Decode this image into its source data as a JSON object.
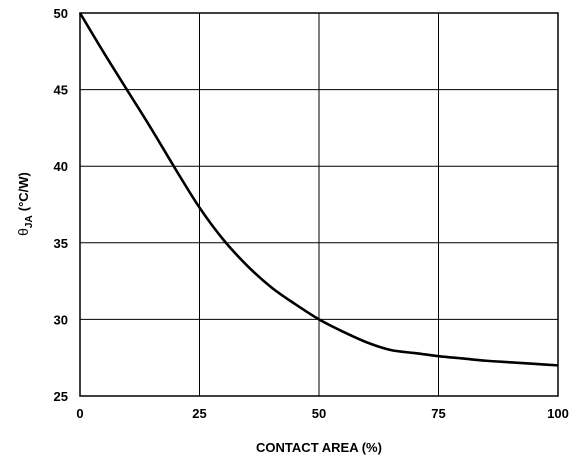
{
  "chart_data": {
    "type": "line",
    "title": "",
    "xlabel": "CONTACT AREA (%)",
    "ylabel": {
      "symbol": "θ",
      "subscript": "JA",
      "unit": "(°C/W)"
    },
    "xlim": [
      0,
      100
    ],
    "ylim": [
      25,
      50
    ],
    "x_ticks": [
      0,
      25,
      50,
      75,
      100
    ],
    "y_ticks": [
      25,
      30,
      35,
      40,
      45,
      50
    ],
    "grid": true,
    "legend": "none",
    "series": [
      {
        "x": [
          0,
          5,
          10,
          15,
          20,
          25,
          30,
          35,
          40,
          45,
          50,
          55,
          60,
          65,
          70,
          75,
          80,
          85,
          90,
          95,
          100
        ],
        "y": [
          50,
          47.4,
          44.9,
          42.4,
          39.8,
          37.3,
          35.2,
          33.5,
          32.1,
          31.0,
          30.0,
          29.2,
          28.5,
          28.0,
          27.8,
          27.6,
          27.45,
          27.3,
          27.2,
          27.1,
          27.0
        ]
      }
    ],
    "colors": {
      "line": "#000000",
      "grid": "#000000"
    }
  }
}
